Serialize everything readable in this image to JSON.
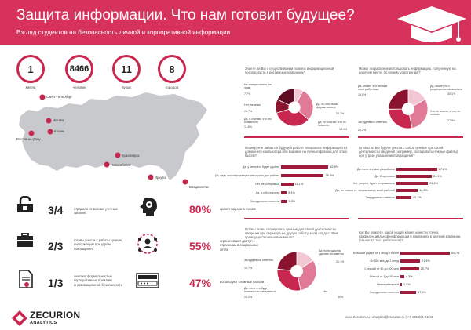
{
  "header": {
    "title": "Защита информации. Что нам готовит будущее?",
    "subtitle": "Взгляд студентов на безопасность личной и корпоративной информации"
  },
  "stats": [
    {
      "value": "1",
      "label": "месяц"
    },
    {
      "value": "8466",
      "label": "человек"
    },
    {
      "value": "11",
      "label": "вузов"
    },
    {
      "value": "8",
      "label": "городов"
    }
  ],
  "map": {
    "cities": [
      "Санкт-Петербург",
      "Москва",
      "Казань",
      "Ростов-на-Дону",
      "Красноярск",
      "Новосибирск",
      "Иркутск",
      "Владивосток"
    ]
  },
  "key_facts_left": [
    {
      "value": "3/4",
      "icon": "broken-lock-icon",
      "text": "страдали от взлома учетных записей"
    },
    {
      "value": "2/3",
      "icon": "briefcase-icon",
      "text": "готовы унести с работы ценную информацию при угрозе сокращения"
    },
    {
      "value": "1/3",
      "icon": "document-icon",
      "text": "считают формальностью корпоративные политики информационной безопасности"
    }
  ],
  "key_facts_right": [
    {
      "value": "80%",
      "icon": "head-gear-icon",
      "text": "хранят пароли в голове"
    },
    {
      "value": "55%",
      "icon": "people-network-icon",
      "text": "ограничивают доступ к страницам в социальных сетях"
    },
    {
      "value": "47%",
      "icon": "password-field-icon",
      "text": "используют сложные пароли"
    }
  ],
  "chart_data": [
    {
      "type": "pie",
      "title": "Знаете ли Вы о существовании политик информационной безопасности в российских компаниях?",
      "labels": [
        "Не интересовало, не знаю",
        "Нет, не знаю",
        "Да, но они лишь формальность",
        "Да, и считаю, что это правильно",
        "Да, но считаю, что не помогает"
      ],
      "values": [
        7.7,
        28.7,
        33.7,
        11.8,
        18.1
      ]
    },
    {
      "type": "pie",
      "title": "Может ли работник использовать информацию, полученную на рабочем месте, по своему усмотрению?",
      "labels": [
        "Да, может, это личный опыт работника",
        "Да, может, но с разрешения начальника",
        "Что-то можно, а что-то нельзя",
        "Затрудняюсь ответить"
      ],
      "values": [
        16.8,
        30.1,
        27.9,
        25.2
      ]
    },
    {
      "type": "bar",
      "title": "Планируете ли Вы на будущей работе копировать информацию из домашнего компьютера или взаимно на личные флешки для этого мысли?",
      "categories": [
        "Да, у меня это будет удобно",
        "Да, ведь эта информация мне нужна для работы",
        "Нет, не собираюсь",
        "Да, в обе стороны",
        "Затрудняюсь ответить"
      ],
      "values": [
        42.5,
        38.3,
        11.1,
        5.1,
        5.3
      ]
    },
    {
      "type": "bar",
      "title": "Готовы ли Вы будете унести с собой ценные при своей деятельности сведения (например, скопировать нужные файлы) при угрозе увольнения/сокращения?",
      "categories": [
        "Да, если это мои разработки",
        "Да, безусловно",
        "Нет, уверен, будет неправильно",
        "Да, но только то, что связано с моей работой",
        "Затрудняюсь ответить"
      ],
      "values": [
        27.8,
        24.1,
        21.6,
        14.5,
        10.1
      ]
    },
    {
      "type": "pie",
      "title": "Готовы ли вы скопировать ценные для своей деятельности сведения при переходе на другую работу, если это даст Вам преимущество на новом месте?",
      "labels": [
        "Затрудняюсь ответить",
        "Да, если удастся сделать незаметно",
        "Нет",
        "Да, если это будет полезно на новом месте"
      ],
      "values": [
        15.7,
        31.1,
        30.0,
        23.2
      ]
    },
    {
      "type": "bar",
      "title": "Как Вы думаете, какой ущерб может нанести утечка конфиденциальной информации в компаниях в крупной компании (свыше 10 тыс. работников)?",
      "categories": [
        "Больший ущерб от 1 млрд и более",
        "От 500 млн до 1 млрд",
        "Средний от 50 до 500 млн",
        "Малый от 1 до 50 млн",
        "Незначительный",
        "Затрудняюсь ответить"
      ],
      "values": [
        54.7,
        21.9,
        20.7,
        4.3,
        1.5,
        17.6
      ]
    }
  ],
  "footer": {
    "brand": "ZECURION",
    "brand_sub": "ANALYTICS",
    "contacts": "www.zecurion.ru   |   analytics@zecurion.ru   |   +7 495 221-21-60"
  }
}
